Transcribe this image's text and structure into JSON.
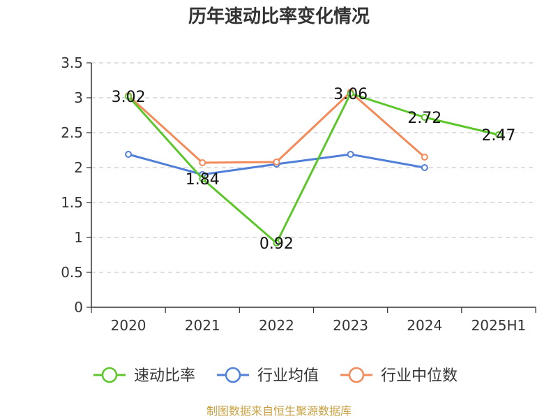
{
  "chart_data": {
    "type": "line",
    "title": "历年速动比率变化情况",
    "categories": [
      "2020",
      "2021",
      "2022",
      "2023",
      "2024",
      "2025H1"
    ],
    "ylim": [
      0,
      3.5
    ],
    "yticks": [
      "0",
      "0.5",
      "1",
      "1.5",
      "2",
      "2.5",
      "3",
      "3.5"
    ],
    "grid": true,
    "legend_position": "bottom",
    "series": [
      {
        "name": "速动比率",
        "color": "#5cc62b",
        "values": [
          3.02,
          1.84,
          0.92,
          3.06,
          2.72,
          2.47
        ],
        "labels": [
          "3.02",
          "1.84",
          "0.92",
          "3.06",
          "2.72",
          "2.47"
        ]
      },
      {
        "name": "行业均值",
        "color": "#4f7fd8",
        "values": [
          2.19,
          1.9,
          2.05,
          2.19,
          2.0,
          null
        ]
      },
      {
        "name": "行业中位数",
        "color": "#f28a5a",
        "values": [
          3.03,
          2.07,
          2.08,
          3.08,
          2.15,
          null
        ]
      }
    ],
    "source": "制图数据来自恒生聚源数据库"
  }
}
